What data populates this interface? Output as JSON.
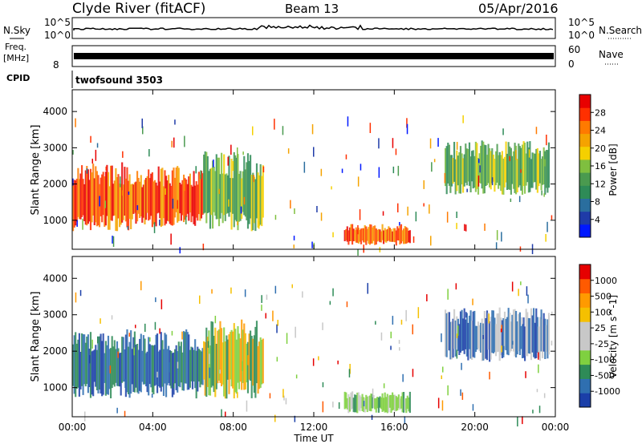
{
  "header": {
    "station": "Clyde River (fitACF)",
    "beam": "Beam 13",
    "date": "05/Apr/2016"
  },
  "strip_labels": {
    "nsky": "N.Sky",
    "nsky_top_tick": "10^5",
    "nsky_bottom_tick": "10^0",
    "nsearch": "N.Search",
    "nsearch_top_tick": "10^5",
    "nsearch_bottom_tick": "10^0",
    "freq": "Freq.",
    "freq_unit": "[MHz]",
    "freq_left_tick": "8",
    "nave": "Nave",
    "nave_top_tick": "60",
    "nave_bottom_tick": "0",
    "cpid": "CPID",
    "cpid_value": "twofsound 3503"
  },
  "colors": {
    "power_scale": [
      "#0018ff",
      "#1f3ba8",
      "#2a6e9e",
      "#2e8b57",
      "#4a9a4f",
      "#7fbf3f",
      "#f5d000",
      "#f5a300",
      "#ff7a00",
      "#ff3000",
      "#e80000"
    ],
    "velocity_scale": [
      "#e60000",
      "#ff5a00",
      "#ff9a00",
      "#f5c000",
      "#c8c8c8",
      "#c8c8c8",
      "#7fd040",
      "#2e8b57",
      "#2f6fb0",
      "#1b3fa8"
    ]
  },
  "chart_data": [
    {
      "type": "heatmap",
      "title": "",
      "xlabel": "",
      "ylabel": "Slant Range [km]",
      "xlim": [
        "00:00",
        "24:00"
      ],
      "ylim": [
        200,
        4600
      ],
      "x_ticks": [
        "00:00",
        "04:00",
        "08:00",
        "12:00",
        "16:00",
        "20:00",
        "00:00"
      ],
      "y_ticks": [
        1000,
        2000,
        3000,
        4000
      ],
      "colorbar": {
        "label": "Power [dB]",
        "ticks": [
          4,
          8,
          12,
          16,
          20,
          24,
          28
        ],
        "range": [
          0,
          30
        ]
      },
      "regions": [
        {
          "t_start": 0.0,
          "t_end": 3.0,
          "range_low": 700,
          "range_high": 2600,
          "level": "high"
        },
        {
          "t_start": 3.0,
          "t_end": 6.5,
          "range_low": 800,
          "range_high": 2500,
          "level": "high"
        },
        {
          "t_start": 6.5,
          "t_end": 9.5,
          "range_low": 700,
          "range_high": 2900,
          "level": "medium"
        },
        {
          "t_start": 13.5,
          "t_end": 16.8,
          "range_low": 300,
          "range_high": 900,
          "level": "high"
        },
        {
          "t_start": 18.5,
          "t_end": 23.7,
          "range_low": 1700,
          "range_high": 3200,
          "level": "medium"
        }
      ]
    },
    {
      "type": "heatmap",
      "title": "",
      "xlabel": "Time UT",
      "ylabel": "Slant Range [km]",
      "xlim": [
        "00:00",
        "24:00"
      ],
      "ylim": [
        200,
        4600
      ],
      "x_ticks": [
        "00:00",
        "04:00",
        "08:00",
        "12:00",
        "16:00",
        "20:00",
        "00:00"
      ],
      "y_ticks": [
        1000,
        2000,
        3000,
        4000
      ],
      "colorbar": {
        "label": "Velocity [m s^-1]",
        "ticks": [
          1000,
          500,
          100,
          25,
          -25,
          -100,
          -500,
          -1000
        ]
      },
      "regions": [
        {
          "t_start": 0.0,
          "t_end": 6.5,
          "range_low": 700,
          "range_high": 2600,
          "level": "negative-blue-green"
        },
        {
          "t_start": 6.5,
          "t_end": 9.5,
          "range_low": 700,
          "range_high": 2900,
          "level": "mixed"
        },
        {
          "t_start": 13.5,
          "t_end": 16.8,
          "range_low": 300,
          "range_high": 900,
          "level": "near-zero"
        },
        {
          "t_start": 18.5,
          "t_end": 23.7,
          "range_low": 1700,
          "range_high": 3200,
          "level": "blue-grey"
        }
      ]
    }
  ]
}
